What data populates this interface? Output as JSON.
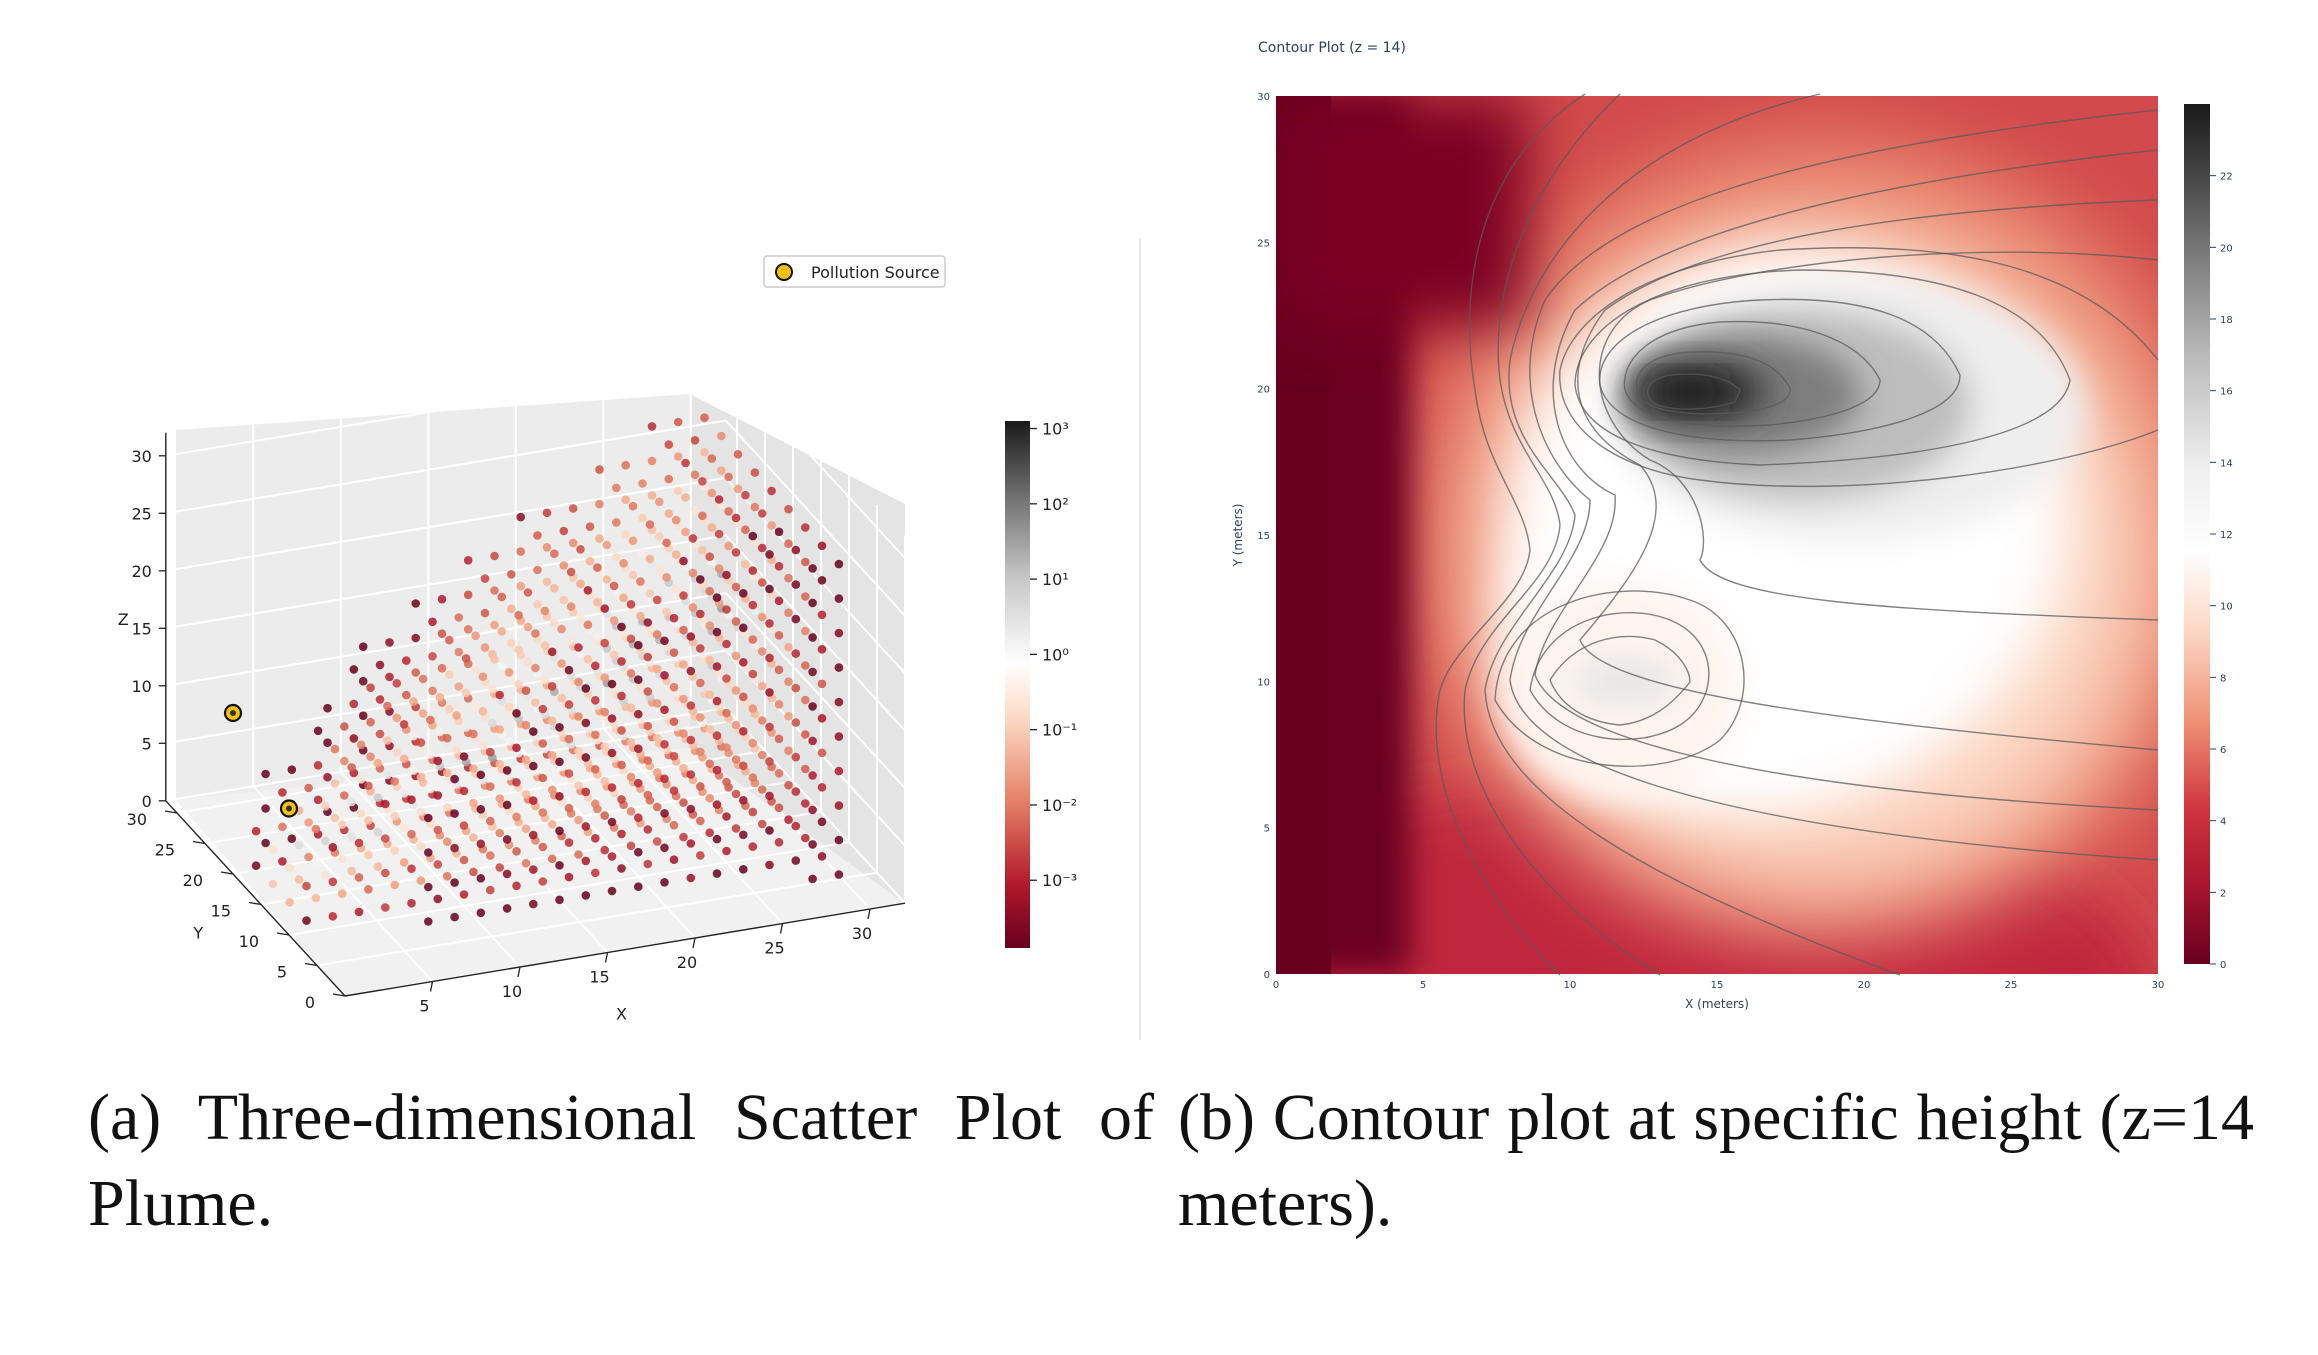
{
  "scatter3d": {
    "chart_data": {
      "type": "scatter",
      "projection": "3d",
      "x_ticks": [
        "5",
        "10",
        "15",
        "20",
        "25",
        "30"
      ],
      "y_ticks": [
        "0",
        "5",
        "10",
        "15",
        "20",
        "25",
        "30"
      ],
      "z_ticks": [
        "0",
        "5",
        "10",
        "15",
        "20",
        "25",
        "30"
      ],
      "xlabel": "X",
      "ylabel": "Y",
      "zlabel": "Z",
      "xlim": [
        0,
        32
      ],
      "ylim": [
        0,
        32
      ],
      "zlim": [
        0,
        32
      ],
      "legend": "Pollution Source",
      "legend_position": "top-right",
      "sources": [
        {
          "x": 0,
          "y": 20,
          "z": 14
        },
        {
          "x": 0,
          "y": 10,
          "z": 11
        }
      ],
      "points": "plume grid x 1-30 (step ~1.5), y 1-30 (step ~3), z 1-30 (step ~3), colored by log concentration",
      "colorbar": {
        "scale": "log",
        "ticks": [
          "10³",
          "10²",
          "10¹",
          "10⁰",
          "10⁻¹",
          "10⁻²",
          "10⁻³"
        ],
        "exponents": [
          3,
          2,
          1,
          0,
          -1,
          -2,
          -3
        ],
        "range_exp": [
          -3.9,
          3.1
        ],
        "colors": [
          "#67001f",
          "#d6604d",
          "#fddbc7",
          "#ffffff",
          "#bababa",
          "#4d4d4d",
          "#1a1a1a"
        ]
      }
    }
  },
  "contour": {
    "title": "Contour Plot (z = 14)",
    "chart_data": {
      "type": "heatmap",
      "subtype": "contour",
      "xlabel": "X (meters)",
      "ylabel": "Y (meters)",
      "x_ticks": [
        "0",
        "5",
        "10",
        "15",
        "20",
        "25",
        "30"
      ],
      "y_ticks": [
        "0",
        "5",
        "10",
        "15",
        "20",
        "25",
        "30"
      ],
      "xlim": [
        0,
        30
      ],
      "ylim": [
        0,
        30
      ],
      "peaks": [
        {
          "x": 14,
          "y": 20,
          "value": 23
        },
        {
          "x": 11,
          "y": 10,
          "value": 14
        }
      ],
      "colorbar": {
        "ticks": [
          "0",
          "2",
          "4",
          "6",
          "8",
          "10",
          "12",
          "14",
          "16",
          "18",
          "20",
          "22"
        ],
        "values": [
          0,
          2,
          4,
          6,
          8,
          10,
          12,
          14,
          16,
          18,
          20,
          22
        ],
        "range": [
          0,
          24
        ],
        "colors": [
          "#67001f",
          "#b2182b",
          "#d6604d",
          "#f4a582",
          "#fddbc7",
          "#ffffff",
          "#e0e0e0",
          "#bababa",
          "#878787",
          "#4d4d4d",
          "#1a1a1a"
        ]
      }
    }
  },
  "captions": {
    "a": "(a) Three-dimensional Scatter Plot of Plume.",
    "b": "(b) Contour plot at specific height (z=14 meters)."
  }
}
